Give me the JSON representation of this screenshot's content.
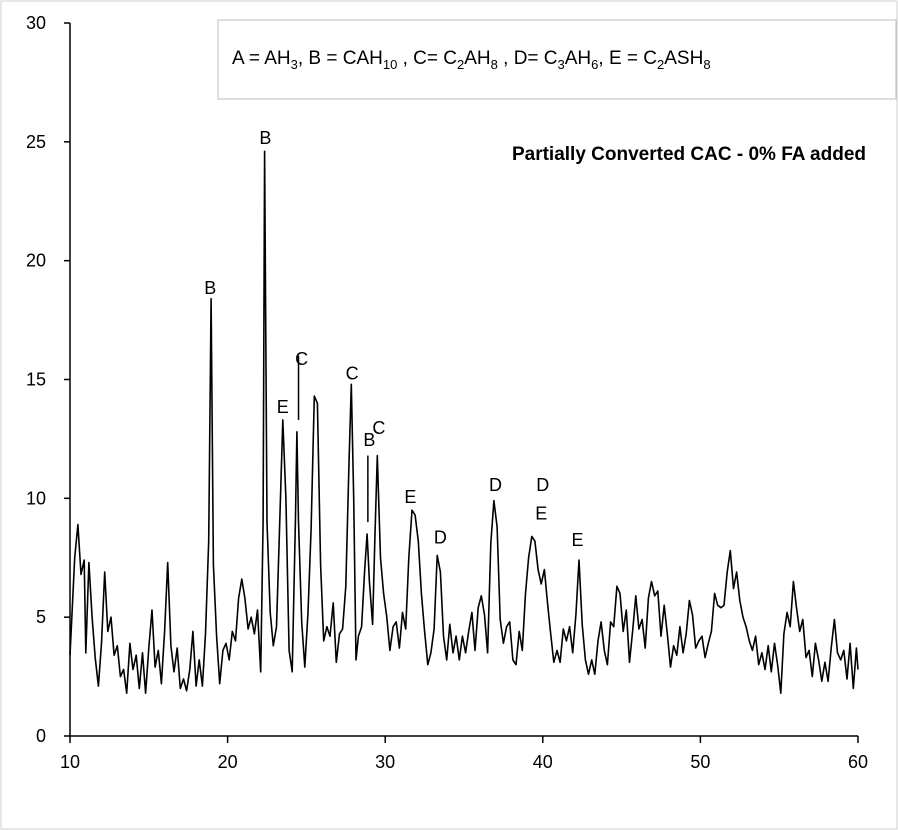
{
  "chart_data": {
    "type": "line",
    "title": "Partially Converted CAC - 0% FA added",
    "legend_box": {
      "text": "A = AH3, B = CAH10 , C= C2AH8 , D= C3AH6, E = C2ASH8",
      "segments": [
        {
          "t": "A = AH",
          "s": ""
        },
        {
          "t": "3",
          "s": "sub"
        },
        {
          "t": ", B = CAH",
          "s": ""
        },
        {
          "t": "10",
          "s": "sub"
        },
        {
          "t": " , C= C",
          "s": ""
        },
        {
          "t": "2",
          "s": "sub"
        },
        {
          "t": "AH",
          "s": ""
        },
        {
          "t": "8",
          "s": "sub"
        },
        {
          "t": " , D= C",
          "s": ""
        },
        {
          "t": "3",
          "s": "sub"
        },
        {
          "t": "AH",
          "s": ""
        },
        {
          "t": "6",
          "s": "sub"
        },
        {
          "t": ", E = C",
          "s": ""
        },
        {
          "t": "2",
          "s": "sub"
        },
        {
          "t": "ASH",
          "s": ""
        },
        {
          "t": "8",
          "s": "sub"
        }
      ]
    },
    "xlim": [
      10,
      60
    ],
    "ylim": [
      0,
      30
    ],
    "x_ticks": [
      10,
      20,
      30,
      40,
      50,
      60
    ],
    "y_ticks": [
      0,
      5,
      10,
      15,
      20,
      25,
      30
    ],
    "grid": false,
    "series": [
      {
        "points": [
          [
            10.0,
            3.4
          ],
          [
            10.3,
            7.5
          ],
          [
            10.5,
            8.9
          ],
          [
            10.7,
            6.8
          ],
          [
            10.9,
            7.4
          ],
          [
            11.0,
            3.5
          ],
          [
            11.2,
            7.3
          ],
          [
            11.4,
            5.0
          ],
          [
            11.6,
            3.3
          ],
          [
            11.8,
            2.1
          ],
          [
            12.0,
            3.9
          ],
          [
            12.2,
            6.9
          ],
          [
            12.4,
            4.4
          ],
          [
            12.6,
            5.0
          ],
          [
            12.8,
            3.4
          ],
          [
            13.0,
            3.8
          ],
          [
            13.2,
            2.5
          ],
          [
            13.4,
            2.8
          ],
          [
            13.6,
            1.8
          ],
          [
            13.8,
            3.9
          ],
          [
            14.0,
            2.8
          ],
          [
            14.2,
            3.4
          ],
          [
            14.4,
            2.0
          ],
          [
            14.6,
            3.5
          ],
          [
            14.8,
            1.8
          ],
          [
            15.0,
            3.7
          ],
          [
            15.2,
            5.3
          ],
          [
            15.4,
            2.9
          ],
          [
            15.6,
            3.6
          ],
          [
            15.8,
            2.2
          ],
          [
            16.0,
            4.4
          ],
          [
            16.2,
            7.3
          ],
          [
            16.4,
            3.8
          ],
          [
            16.6,
            2.7
          ],
          [
            16.8,
            3.7
          ],
          [
            17.0,
            2.0
          ],
          [
            17.2,
            2.4
          ],
          [
            17.4,
            1.9
          ],
          [
            17.6,
            2.8
          ],
          [
            17.8,
            4.4
          ],
          [
            18.0,
            2.1
          ],
          [
            18.2,
            3.2
          ],
          [
            18.4,
            2.1
          ],
          [
            18.6,
            4.3
          ],
          [
            18.8,
            8.2
          ],
          [
            18.95,
            18.4
          ],
          [
            19.1,
            7.2
          ],
          [
            19.3,
            4.2
          ],
          [
            19.5,
            2.2
          ],
          [
            19.7,
            3.6
          ],
          [
            19.9,
            3.9
          ],
          [
            20.1,
            3.2
          ],
          [
            20.3,
            4.4
          ],
          [
            20.5,
            4.0
          ],
          [
            20.7,
            5.8
          ],
          [
            20.9,
            6.6
          ],
          [
            21.1,
            5.8
          ],
          [
            21.3,
            4.5
          ],
          [
            21.5,
            5.0
          ],
          [
            21.7,
            4.3
          ],
          [
            21.9,
            5.3
          ],
          [
            22.1,
            2.7
          ],
          [
            22.25,
            9.0
          ],
          [
            22.35,
            24.6
          ],
          [
            22.5,
            9.0
          ],
          [
            22.7,
            5.2
          ],
          [
            22.9,
            3.8
          ],
          [
            23.1,
            4.6
          ],
          [
            23.3,
            8.8
          ],
          [
            23.5,
            13.3
          ],
          [
            23.7,
            10.0
          ],
          [
            23.9,
            3.6
          ],
          [
            24.1,
            2.7
          ],
          [
            24.3,
            9.0
          ],
          [
            24.4,
            12.8
          ],
          [
            24.5,
            9.0
          ],
          [
            24.7,
            4.8
          ],
          [
            24.9,
            2.9
          ],
          [
            25.1,
            5.2
          ],
          [
            25.3,
            8.7
          ],
          [
            25.5,
            14.3
          ],
          [
            25.7,
            14.0
          ],
          [
            25.9,
            7.2
          ],
          [
            26.1,
            4.0
          ],
          [
            26.3,
            4.6
          ],
          [
            26.5,
            4.2
          ],
          [
            26.7,
            5.6
          ],
          [
            26.9,
            3.1
          ],
          [
            27.1,
            4.3
          ],
          [
            27.3,
            4.5
          ],
          [
            27.5,
            6.3
          ],
          [
            27.7,
            11.5
          ],
          [
            27.85,
            14.8
          ],
          [
            28.0,
            10.0
          ],
          [
            28.15,
            3.2
          ],
          [
            28.3,
            4.2
          ],
          [
            28.5,
            4.6
          ],
          [
            28.7,
            7.0
          ],
          [
            28.85,
            8.5
          ],
          [
            29.0,
            6.5
          ],
          [
            29.2,
            4.7
          ],
          [
            29.35,
            8.5
          ],
          [
            29.5,
            11.8
          ],
          [
            29.7,
            7.5
          ],
          [
            29.9,
            6.0
          ],
          [
            30.1,
            5.0
          ],
          [
            30.3,
            3.6
          ],
          [
            30.5,
            4.6
          ],
          [
            30.7,
            4.8
          ],
          [
            30.9,
            3.7
          ],
          [
            31.1,
            5.2
          ],
          [
            31.3,
            4.5
          ],
          [
            31.5,
            7.5
          ],
          [
            31.7,
            9.5
          ],
          [
            31.9,
            9.3
          ],
          [
            32.1,
            8.2
          ],
          [
            32.3,
            6.0
          ],
          [
            32.5,
            4.4
          ],
          [
            32.7,
            3.0
          ],
          [
            32.9,
            3.5
          ],
          [
            33.1,
            4.5
          ],
          [
            33.3,
            7.6
          ],
          [
            33.5,
            6.9
          ],
          [
            33.7,
            4.2
          ],
          [
            33.9,
            3.2
          ],
          [
            34.1,
            4.7
          ],
          [
            34.3,
            3.5
          ],
          [
            34.5,
            4.2
          ],
          [
            34.7,
            3.2
          ],
          [
            34.9,
            4.2
          ],
          [
            35.1,
            3.5
          ],
          [
            35.3,
            4.4
          ],
          [
            35.5,
            5.2
          ],
          [
            35.7,
            3.6
          ],
          [
            35.9,
            5.4
          ],
          [
            36.1,
            5.9
          ],
          [
            36.3,
            5.1
          ],
          [
            36.5,
            3.5
          ],
          [
            36.7,
            8.1
          ],
          [
            36.9,
            9.9
          ],
          [
            37.1,
            8.8
          ],
          [
            37.3,
            4.9
          ],
          [
            37.5,
            3.9
          ],
          [
            37.7,
            4.6
          ],
          [
            37.9,
            4.8
          ],
          [
            38.1,
            3.2
          ],
          [
            38.3,
            3.0
          ],
          [
            38.5,
            4.4
          ],
          [
            38.7,
            3.6
          ],
          [
            38.9,
            6.0
          ],
          [
            39.1,
            7.5
          ],
          [
            39.3,
            8.4
          ],
          [
            39.5,
            8.2
          ],
          [
            39.7,
            7.0
          ],
          [
            39.9,
            6.4
          ],
          [
            40.1,
            7.0
          ],
          [
            40.3,
            5.6
          ],
          [
            40.5,
            4.3
          ],
          [
            40.7,
            3.1
          ],
          [
            40.9,
            3.6
          ],
          [
            41.1,
            3.1
          ],
          [
            41.3,
            4.5
          ],
          [
            41.5,
            4.0
          ],
          [
            41.7,
            4.6
          ],
          [
            41.9,
            3.5
          ],
          [
            42.1,
            5.1
          ],
          [
            42.3,
            7.4
          ],
          [
            42.5,
            4.7
          ],
          [
            42.7,
            3.2
          ],
          [
            42.9,
            2.6
          ],
          [
            43.1,
            3.2
          ],
          [
            43.3,
            2.6
          ],
          [
            43.5,
            4.0
          ],
          [
            43.7,
            4.8
          ],
          [
            43.9,
            3.6
          ],
          [
            44.1,
            3.0
          ],
          [
            44.3,
            4.8
          ],
          [
            44.5,
            4.6
          ],
          [
            44.7,
            6.3
          ],
          [
            44.9,
            6.0
          ],
          [
            45.1,
            4.4
          ],
          [
            45.3,
            5.3
          ],
          [
            45.5,
            3.1
          ],
          [
            45.7,
            4.4
          ],
          [
            45.9,
            5.9
          ],
          [
            46.1,
            4.5
          ],
          [
            46.3,
            4.9
          ],
          [
            46.5,
            3.7
          ],
          [
            46.7,
            5.8
          ],
          [
            46.9,
            6.5
          ],
          [
            47.1,
            5.9
          ],
          [
            47.3,
            6.1
          ],
          [
            47.5,
            4.2
          ],
          [
            47.7,
            5.5
          ],
          [
            47.9,
            4.3
          ],
          [
            48.1,
            2.9
          ],
          [
            48.3,
            3.8
          ],
          [
            48.5,
            3.4
          ],
          [
            48.7,
            4.6
          ],
          [
            48.9,
            3.5
          ],
          [
            49.1,
            4.3
          ],
          [
            49.3,
            5.7
          ],
          [
            49.5,
            5.1
          ],
          [
            49.7,
            3.7
          ],
          [
            49.9,
            4.0
          ],
          [
            50.1,
            4.2
          ],
          [
            50.3,
            3.3
          ],
          [
            50.5,
            3.9
          ],
          [
            50.7,
            4.4
          ],
          [
            50.9,
            6.0
          ],
          [
            51.1,
            5.5
          ],
          [
            51.3,
            5.4
          ],
          [
            51.5,
            5.5
          ],
          [
            51.7,
            6.9
          ],
          [
            51.9,
            7.8
          ],
          [
            52.1,
            6.2
          ],
          [
            52.3,
            6.9
          ],
          [
            52.5,
            5.7
          ],
          [
            52.7,
            5.0
          ],
          [
            52.9,
            4.6
          ],
          [
            53.1,
            4.0
          ],
          [
            53.3,
            3.6
          ],
          [
            53.5,
            4.2
          ],
          [
            53.7,
            3.0
          ],
          [
            53.9,
            3.5
          ],
          [
            54.1,
            2.8
          ],
          [
            54.3,
            3.8
          ],
          [
            54.5,
            2.7
          ],
          [
            54.7,
            3.9
          ],
          [
            54.9,
            3.0
          ],
          [
            55.1,
            1.8
          ],
          [
            55.3,
            4.3
          ],
          [
            55.5,
            5.2
          ],
          [
            55.7,
            4.6
          ],
          [
            55.9,
            6.5
          ],
          [
            56.1,
            5.4
          ],
          [
            56.3,
            4.4
          ],
          [
            56.5,
            4.9
          ],
          [
            56.7,
            3.3
          ],
          [
            56.9,
            3.6
          ],
          [
            57.1,
            2.5
          ],
          [
            57.3,
            3.9
          ],
          [
            57.5,
            3.2
          ],
          [
            57.7,
            2.3
          ],
          [
            57.9,
            3.1
          ],
          [
            58.1,
            2.3
          ],
          [
            58.3,
            3.7
          ],
          [
            58.5,
            4.9
          ],
          [
            58.7,
            3.5
          ],
          [
            58.9,
            3.2
          ],
          [
            59.1,
            3.6
          ],
          [
            59.3,
            2.4
          ],
          [
            59.5,
            3.9
          ],
          [
            59.7,
            2.0
          ],
          [
            59.9,
            3.7
          ],
          [
            60.0,
            2.8
          ]
        ]
      }
    ],
    "annotations": [
      {
        "text": "B",
        "x": 18.9,
        "y": 18.6
      },
      {
        "text": "B",
        "x": 22.4,
        "y": 24.9
      },
      {
        "text": "E",
        "x": 23.5,
        "y": 13.6
      },
      {
        "text": "C",
        "x": 24.7,
        "y": 15.6
      },
      {
        "text": "C",
        "x": 27.9,
        "y": 15.0
      },
      {
        "text": "B",
        "x": 29.0,
        "y": 12.2
      },
      {
        "text": "C",
        "x": 29.6,
        "y": 12.7
      },
      {
        "text": "E",
        "x": 31.6,
        "y": 9.8
      },
      {
        "text": "D",
        "x": 33.5,
        "y": 8.1
      },
      {
        "text": "D",
        "x": 37.0,
        "y": 10.3
      },
      {
        "text": "D",
        "x": 40.0,
        "y": 10.3
      },
      {
        "text": "E",
        "x": 39.9,
        "y": 9.1
      },
      {
        "text": "E",
        "x": 42.2,
        "y": 8.0
      }
    ],
    "leader_lines": [
      {
        "x": 24.5,
        "y_from": 13.3,
        "y_to": 16.0
      },
      {
        "x": 28.9,
        "y_from": 11.8,
        "y_to": 9.0
      }
    ]
  }
}
